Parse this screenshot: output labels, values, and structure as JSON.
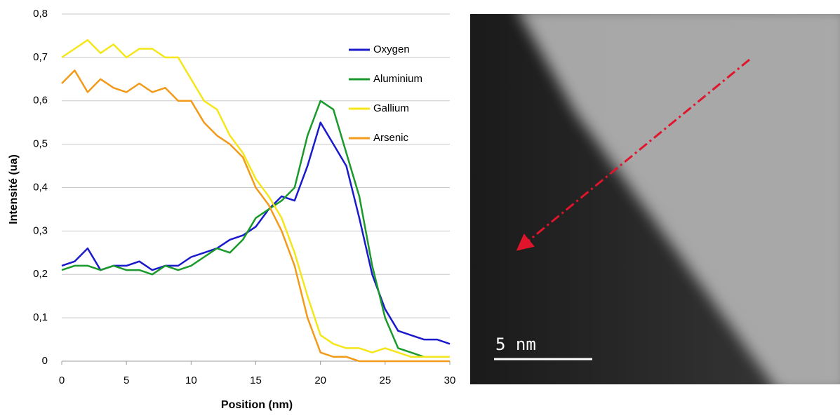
{
  "chart_data": {
    "type": "line",
    "x_label": "Position (nm)",
    "y_label": "Intensité (ua)",
    "x": [
      0,
      1,
      2,
      3,
      4,
      5,
      6,
      7,
      8,
      9,
      10,
      11,
      12,
      13,
      14,
      15,
      16,
      17,
      18,
      19,
      20,
      21,
      22,
      23,
      24,
      25,
      26,
      27,
      28,
      29,
      30
    ],
    "series": [
      {
        "name": "Oxygen",
        "color": "#1a1acc",
        "values": [
          0.22,
          0.23,
          0.26,
          0.21,
          0.22,
          0.22,
          0.23,
          0.21,
          0.22,
          0.22,
          0.24,
          0.25,
          0.26,
          0.28,
          0.29,
          0.31,
          0.35,
          0.38,
          0.37,
          0.45,
          0.55,
          0.5,
          0.45,
          0.33,
          0.2,
          0.12,
          0.07,
          0.06,
          0.05,
          0.05,
          0.04
        ]
      },
      {
        "name": "Aluminium",
        "color": "#1a9a2a",
        "values": [
          0.21,
          0.22,
          0.22,
          0.21,
          0.22,
          0.21,
          0.21,
          0.2,
          0.22,
          0.21,
          0.22,
          0.24,
          0.26,
          0.25,
          0.28,
          0.33,
          0.35,
          0.37,
          0.4,
          0.52,
          0.6,
          0.58,
          0.48,
          0.38,
          0.22,
          0.1,
          0.03,
          0.02,
          0.01,
          0.01,
          0.01
        ]
      },
      {
        "name": "Gallium",
        "color": "#f5e61a",
        "values": [
          0.7,
          0.72,
          0.74,
          0.71,
          0.73,
          0.7,
          0.72,
          0.72,
          0.7,
          0.7,
          0.65,
          0.6,
          0.58,
          0.52,
          0.48,
          0.42,
          0.38,
          0.33,
          0.25,
          0.15,
          0.06,
          0.04,
          0.03,
          0.03,
          0.02,
          0.03,
          0.02,
          0.01,
          0.01,
          0.01,
          0.01
        ]
      },
      {
        "name": "Arsenic",
        "color": "#f29a1a",
        "values": [
          0.64,
          0.67,
          0.62,
          0.65,
          0.63,
          0.62,
          0.64,
          0.62,
          0.63,
          0.6,
          0.6,
          0.55,
          0.52,
          0.5,
          0.47,
          0.4,
          0.36,
          0.3,
          0.22,
          0.1,
          0.02,
          0.01,
          0.01,
          0,
          0,
          0,
          0,
          0,
          0,
          0,
          0
        ]
      }
    ],
    "xlim": [
      0,
      30
    ],
    "xticks": [
      0,
      5,
      10,
      15,
      20,
      25,
      30
    ],
    "ylim": [
      0,
      0.8
    ],
    "yticks": [
      0,
      {
        "value": 0.1,
        "label": "0,1"
      },
      {
        "value": 0.2,
        "label": "0,2"
      },
      {
        "value": 0.3,
        "label": "0,3"
      },
      {
        "value": 0.4,
        "label": "0,4"
      },
      {
        "value": 0.5,
        "label": "0,5"
      },
      {
        "value": 0.6,
        "label": "0,6"
      },
      {
        "value": 0.7,
        "label": "0,7"
      },
      {
        "value": 0.8,
        "label": "0,8"
      }
    ],
    "grid": true,
    "legend": "upper-right"
  },
  "image": {
    "scale_label": "5 nm"
  }
}
